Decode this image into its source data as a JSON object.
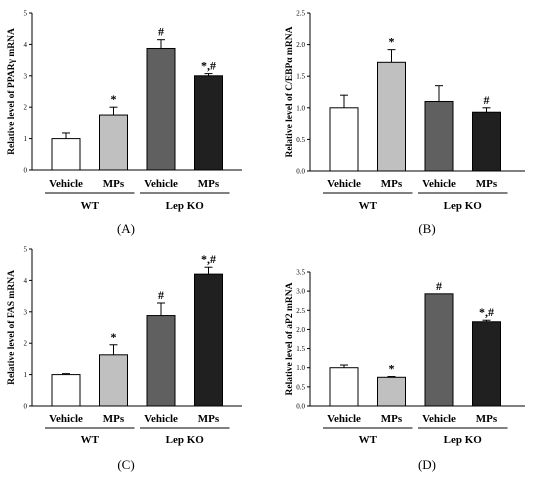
{
  "chart_data": [
    {
      "type": "bar",
      "panel_label": "(A)",
      "ylabel": "Relative level of PPARγ mRNA",
      "ylim": [
        0,
        5
      ],
      "yticks": [
        "0",
        "1",
        "2",
        "3",
        "4",
        "5"
      ],
      "categories": [
        "Vehicle",
        "MPs",
        "Vehicle",
        "MPs"
      ],
      "groups": [
        {
          "name": "WT",
          "span": [
            0,
            1
          ]
        },
        {
          "name": "Lep KO",
          "span": [
            2,
            3
          ]
        }
      ],
      "values": [
        1.0,
        1.75,
        3.87,
        3.0
      ],
      "errors": [
        0.18,
        0.25,
        0.28,
        0.07
      ],
      "bar_colors": [
        "#ffffff",
        "#c0c0c0",
        "#606060",
        "#202020"
      ],
      "annotations": [
        "",
        "*",
        "#",
        "*,#"
      ]
    },
    {
      "type": "bar",
      "panel_label": "(B)",
      "ylabel": "Relative level of C/EBPα mRNA",
      "ylim": [
        0,
        2.5
      ],
      "yticks": [
        "0.0",
        "0.5",
        "1.0",
        "1.5",
        "2.0",
        "2.5"
      ],
      "categories": [
        "Vehicle",
        "MPs",
        "Vehicle",
        "MPs"
      ],
      "groups": [
        {
          "name": "WT",
          "span": [
            0,
            1
          ]
        },
        {
          "name": "Lep KO",
          "span": [
            2,
            3
          ]
        }
      ],
      "values": [
        1.0,
        1.72,
        1.1,
        0.93
      ],
      "errors": [
        0.2,
        0.2,
        0.25,
        0.07
      ],
      "bar_colors": [
        "#ffffff",
        "#c0c0c0",
        "#606060",
        "#202020"
      ],
      "annotations": [
        "",
        "*",
        "",
        "#"
      ]
    },
    {
      "type": "bar",
      "panel_label": "(C)",
      "ylabel": "Relative level of FAS mRNA",
      "ylim": [
        0,
        5
      ],
      "yticks": [
        "0",
        "1",
        "2",
        "3",
        "4",
        "5"
      ],
      "categories": [
        "Vehicle",
        "MPs",
        "Vehicle",
        "MPs"
      ],
      "groups": [
        {
          "name": "WT",
          "span": [
            0,
            1
          ]
        },
        {
          "name": "Lep KO",
          "span": [
            2,
            3
          ]
        }
      ],
      "values": [
        1.0,
        1.63,
        2.88,
        4.2
      ],
      "errors": [
        0.03,
        0.32,
        0.4,
        0.22
      ],
      "bar_colors": [
        "#ffffff",
        "#c0c0c0",
        "#606060",
        "#202020"
      ],
      "annotations": [
        "",
        "*",
        "#",
        "*,#"
      ]
    },
    {
      "type": "bar",
      "panel_label": "(D)",
      "ylabel": "Relative level of aP2 mRNA",
      "ylim": [
        0,
        3.5
      ],
      "yticks": [
        "0.0",
        "0.5",
        "1.0",
        "1.5",
        "2.0",
        "2.5",
        "3.0",
        "3.5"
      ],
      "categories": [
        "Vehicle",
        "MPs",
        "Vehicle",
        "MPs"
      ],
      "groups": [
        {
          "name": "WT",
          "span": [
            0,
            1
          ]
        },
        {
          "name": "Lep KO",
          "span": [
            2,
            3
          ]
        }
      ],
      "values": [
        1.0,
        0.75,
        2.93,
        2.2
      ],
      "errors": [
        0.07,
        0.02,
        0.0,
        0.04
      ],
      "bar_colors": [
        "#ffffff",
        "#c0c0c0",
        "#606060",
        "#202020"
      ],
      "annotations": [
        "",
        "*",
        "#",
        "*,#"
      ]
    }
  ]
}
